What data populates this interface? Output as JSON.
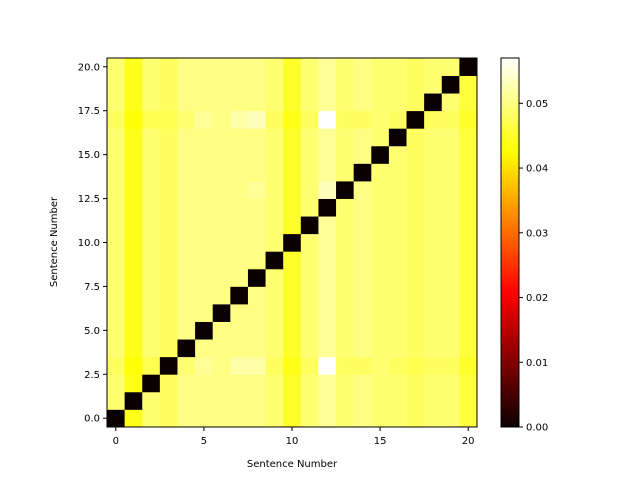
{
  "chart_data": {
    "type": "heatmap",
    "title": "",
    "xlabel": "Sentence Number",
    "ylabel": "Sentence Number",
    "xlim": [
      -0.5,
      20.5
    ],
    "ylim": [
      -0.5,
      20.5
    ],
    "x_ticks": [
      0,
      5,
      10,
      15,
      20
    ],
    "y_ticks": [
      "0.0",
      "2.5",
      "5.0",
      "7.5",
      "10.0",
      "12.5",
      "15.0",
      "17.5",
      "20.0"
    ],
    "y_tick_values": [
      0,
      2.5,
      5,
      7.5,
      10,
      12.5,
      15,
      17.5,
      20
    ],
    "colormap": "hot",
    "colorbar": {
      "min": 0.0,
      "max": 0.057,
      "ticks": [
        "0.00",
        "0.01",
        "0.02",
        "0.03",
        "0.04",
        "0.05"
      ],
      "tick_values": [
        0,
        0.01,
        0.02,
        0.03,
        0.04,
        0.05
      ]
    },
    "grid": false,
    "note_rows_cols": "matrix[row][col], row = y value (sentence number), col = x value (sentence number); diagonal is 0",
    "matrix": [
      [
        0.0,
        0.044,
        0.049,
        0.048,
        0.05,
        0.05,
        0.05,
        0.05,
        0.05,
        0.049,
        0.045,
        0.049,
        0.051,
        0.049,
        0.05,
        0.049,
        0.049,
        0.048,
        0.049,
        0.049,
        0.046
      ],
      [
        0.049,
        0.0,
        0.049,
        0.048,
        0.05,
        0.05,
        0.05,
        0.05,
        0.05,
        0.049,
        0.045,
        0.049,
        0.051,
        0.049,
        0.05,
        0.049,
        0.049,
        0.048,
        0.049,
        0.049,
        0.046
      ],
      [
        0.049,
        0.044,
        0.0,
        0.048,
        0.05,
        0.05,
        0.05,
        0.05,
        0.05,
        0.049,
        0.045,
        0.049,
        0.051,
        0.049,
        0.05,
        0.049,
        0.049,
        0.048,
        0.049,
        0.049,
        0.046
      ],
      [
        0.048,
        0.043,
        0.047,
        0.0,
        0.049,
        0.051,
        0.05,
        0.052,
        0.052,
        0.048,
        0.044,
        0.048,
        0.057,
        0.048,
        0.048,
        0.049,
        0.048,
        0.047,
        0.048,
        0.048,
        0.045
      ],
      [
        0.049,
        0.044,
        0.049,
        0.048,
        0.0,
        0.05,
        0.05,
        0.05,
        0.05,
        0.049,
        0.045,
        0.049,
        0.051,
        0.049,
        0.05,
        0.049,
        0.049,
        0.048,
        0.049,
        0.049,
        0.046
      ],
      [
        0.049,
        0.044,
        0.049,
        0.048,
        0.05,
        0.0,
        0.05,
        0.05,
        0.05,
        0.049,
        0.045,
        0.049,
        0.051,
        0.049,
        0.05,
        0.049,
        0.049,
        0.048,
        0.049,
        0.049,
        0.046
      ],
      [
        0.049,
        0.044,
        0.049,
        0.048,
        0.05,
        0.05,
        0.0,
        0.05,
        0.05,
        0.049,
        0.045,
        0.049,
        0.051,
        0.049,
        0.05,
        0.049,
        0.049,
        0.048,
        0.049,
        0.049,
        0.046
      ],
      [
        0.049,
        0.044,
        0.049,
        0.048,
        0.05,
        0.05,
        0.05,
        0.0,
        0.05,
        0.049,
        0.045,
        0.049,
        0.051,
        0.049,
        0.05,
        0.049,
        0.049,
        0.048,
        0.049,
        0.049,
        0.046
      ],
      [
        0.049,
        0.044,
        0.049,
        0.048,
        0.05,
        0.05,
        0.05,
        0.05,
        0.0,
        0.049,
        0.045,
        0.049,
        0.051,
        0.049,
        0.05,
        0.049,
        0.049,
        0.048,
        0.049,
        0.049,
        0.046
      ],
      [
        0.049,
        0.044,
        0.049,
        0.048,
        0.05,
        0.05,
        0.05,
        0.05,
        0.05,
        0.0,
        0.045,
        0.049,
        0.051,
        0.049,
        0.05,
        0.049,
        0.049,
        0.048,
        0.049,
        0.049,
        0.046
      ],
      [
        0.049,
        0.044,
        0.049,
        0.048,
        0.05,
        0.05,
        0.05,
        0.05,
        0.05,
        0.049,
        0.0,
        0.049,
        0.051,
        0.049,
        0.05,
        0.049,
        0.049,
        0.048,
        0.049,
        0.049,
        0.046
      ],
      [
        0.049,
        0.044,
        0.049,
        0.048,
        0.05,
        0.05,
        0.05,
        0.05,
        0.05,
        0.049,
        0.045,
        0.0,
        0.051,
        0.049,
        0.05,
        0.049,
        0.049,
        0.048,
        0.049,
        0.049,
        0.046
      ],
      [
        0.049,
        0.044,
        0.049,
        0.048,
        0.05,
        0.05,
        0.05,
        0.05,
        0.05,
        0.049,
        0.045,
        0.049,
        0.0,
        0.049,
        0.05,
        0.049,
        0.049,
        0.048,
        0.049,
        0.049,
        0.046
      ],
      [
        0.049,
        0.044,
        0.049,
        0.048,
        0.05,
        0.05,
        0.05,
        0.05,
        0.051,
        0.049,
        0.045,
        0.049,
        0.053,
        0.0,
        0.05,
        0.049,
        0.049,
        0.048,
        0.049,
        0.049,
        0.046
      ],
      [
        0.049,
        0.044,
        0.049,
        0.048,
        0.05,
        0.05,
        0.05,
        0.05,
        0.05,
        0.049,
        0.045,
        0.049,
        0.051,
        0.049,
        0.0,
        0.049,
        0.049,
        0.048,
        0.049,
        0.049,
        0.046
      ],
      [
        0.049,
        0.044,
        0.049,
        0.048,
        0.05,
        0.05,
        0.05,
        0.05,
        0.05,
        0.049,
        0.045,
        0.049,
        0.051,
        0.049,
        0.05,
        0.0,
        0.049,
        0.048,
        0.049,
        0.049,
        0.046
      ],
      [
        0.049,
        0.044,
        0.049,
        0.048,
        0.05,
        0.05,
        0.05,
        0.05,
        0.05,
        0.049,
        0.045,
        0.049,
        0.051,
        0.049,
        0.05,
        0.049,
        0.0,
        0.048,
        0.049,
        0.049,
        0.046
      ],
      [
        0.048,
        0.043,
        0.047,
        0.047,
        0.049,
        0.051,
        0.05,
        0.052,
        0.053,
        0.048,
        0.044,
        0.048,
        0.057,
        0.048,
        0.048,
        0.049,
        0.048,
        0.0,
        0.048,
        0.048,
        0.045
      ],
      [
        0.049,
        0.044,
        0.049,
        0.048,
        0.05,
        0.05,
        0.05,
        0.05,
        0.05,
        0.049,
        0.045,
        0.049,
        0.051,
        0.049,
        0.05,
        0.049,
        0.049,
        0.048,
        0.0,
        0.049,
        0.046
      ],
      [
        0.049,
        0.044,
        0.049,
        0.048,
        0.05,
        0.05,
        0.05,
        0.05,
        0.05,
        0.049,
        0.045,
        0.049,
        0.051,
        0.049,
        0.05,
        0.049,
        0.049,
        0.048,
        0.049,
        0.0,
        0.046
      ],
      [
        0.049,
        0.044,
        0.049,
        0.048,
        0.05,
        0.05,
        0.05,
        0.05,
        0.05,
        0.049,
        0.045,
        0.049,
        0.051,
        0.049,
        0.05,
        0.049,
        0.049,
        0.048,
        0.049,
        0.049,
        0.0
      ]
    ]
  }
}
